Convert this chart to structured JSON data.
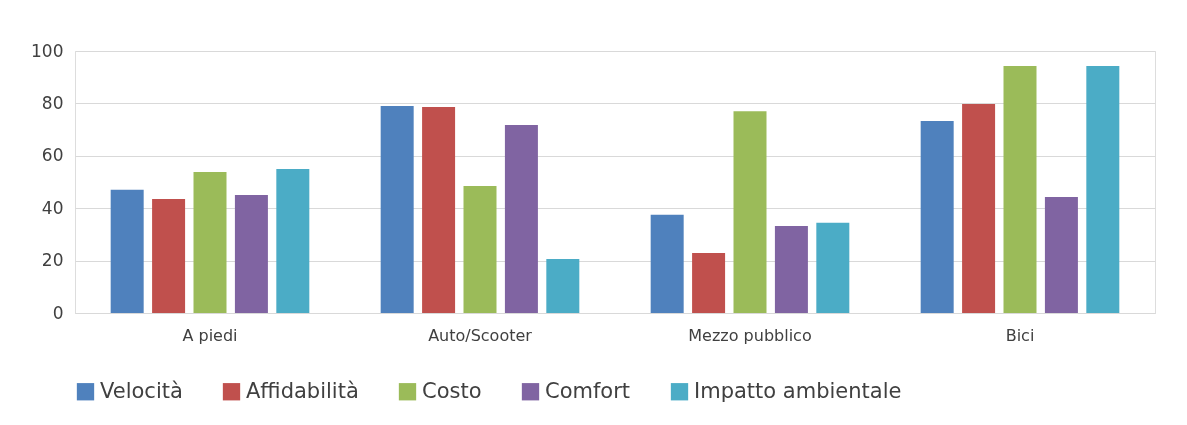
{
  "chart_data": {
    "type": "bar",
    "categories": [
      "A piedi",
      "Auto/Scooter",
      "Mezzo pubblico",
      "Bici"
    ],
    "series": [
      {
        "name": "Velocità",
        "color": "#4f81bd",
        "values": [
          47,
          79,
          37.5,
          73.3
        ]
      },
      {
        "name": "Affidabilità",
        "color": "#c0504d",
        "values": [
          43.5,
          78.6,
          22.9,
          79.8
        ]
      },
      {
        "name": "Costo",
        "color": "#9bbb59",
        "values": [
          53.8,
          48.5,
          77,
          94.3
        ]
      },
      {
        "name": "Comfort",
        "color": "#8064a2",
        "values": [
          45,
          71.8,
          33.2,
          44.3
        ]
      },
      {
        "name": "Impatto ambientale",
        "color": "#4bacc6",
        "values": [
          55,
          20.6,
          34.4,
          94.3
        ]
      }
    ],
    "ylim": [
      0,
      100
    ],
    "yticks": [
      0,
      20,
      40,
      60,
      80,
      100
    ],
    "grid": "y",
    "legend": "bottom"
  }
}
